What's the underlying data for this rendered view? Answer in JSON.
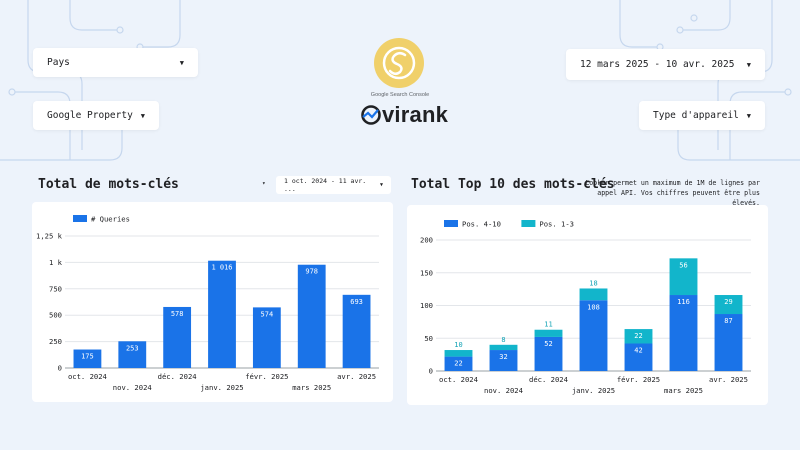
{
  "filters": {
    "country": "Pays",
    "property": "Google Property",
    "date_range": "12 mars 2025 - 10 avr. 2025",
    "device": "Type d'appareil"
  },
  "brand": {
    "logo_caption": "Google Search Console",
    "name": "virank",
    "logo_color": "#f0d06a"
  },
  "left_panel": {
    "title": "Total de mots-clés",
    "date_range": "1 oct. 2024 - 11 avr. ...",
    "caret": "▾"
  },
  "right_panel": {
    "title": "Total Top 10 des mots-clés",
    "note_line1": "Looker permet un maximum de 1M de lignes par",
    "note_line2": "appel API. Vos chiffres peuvent être plus élevés."
  },
  "chart_data": [
    {
      "type": "bar",
      "categories": [
        "oct. 2024",
        "nov. 2024",
        "déc. 2024",
        "janv. 2025",
        "févr. 2025",
        "mars 2025",
        "avr. 2025"
      ],
      "series": [
        {
          "name": "# Queries",
          "values": [
            175,
            253,
            578,
            1016,
            574,
            978,
            693
          ],
          "labels": [
            "175",
            "253",
            "578",
            "1 016",
            "574",
            "978",
            "693"
          ],
          "color": "#1a73e8"
        }
      ],
      "yticks": [
        "0",
        "250",
        "500",
        "750",
        "1 k",
        "1,25 k"
      ],
      "ylim": [
        0,
        1250
      ],
      "grid": true,
      "legend": "top-left"
    },
    {
      "type": "bar",
      "stacked": true,
      "categories": [
        "oct. 2024",
        "nov. 2024",
        "déc. 2024",
        "janv. 2025",
        "févr. 2025",
        "mars 2025",
        "avr. 2025"
      ],
      "series": [
        {
          "name": "Pos. 4-10",
          "values": [
            22,
            32,
            52,
            108,
            42,
            116,
            87
          ],
          "color": "#1a73e8"
        },
        {
          "name": "Pos. 1-3",
          "values": [
            10,
            8,
            11,
            18,
            22,
            56,
            29
          ],
          "color": "#12b5cb"
        }
      ],
      "yticks": [
        "0",
        "50",
        "100",
        "150",
        "200"
      ],
      "ylim": [
        0,
        200
      ],
      "grid": true,
      "legend": "top-left"
    }
  ]
}
